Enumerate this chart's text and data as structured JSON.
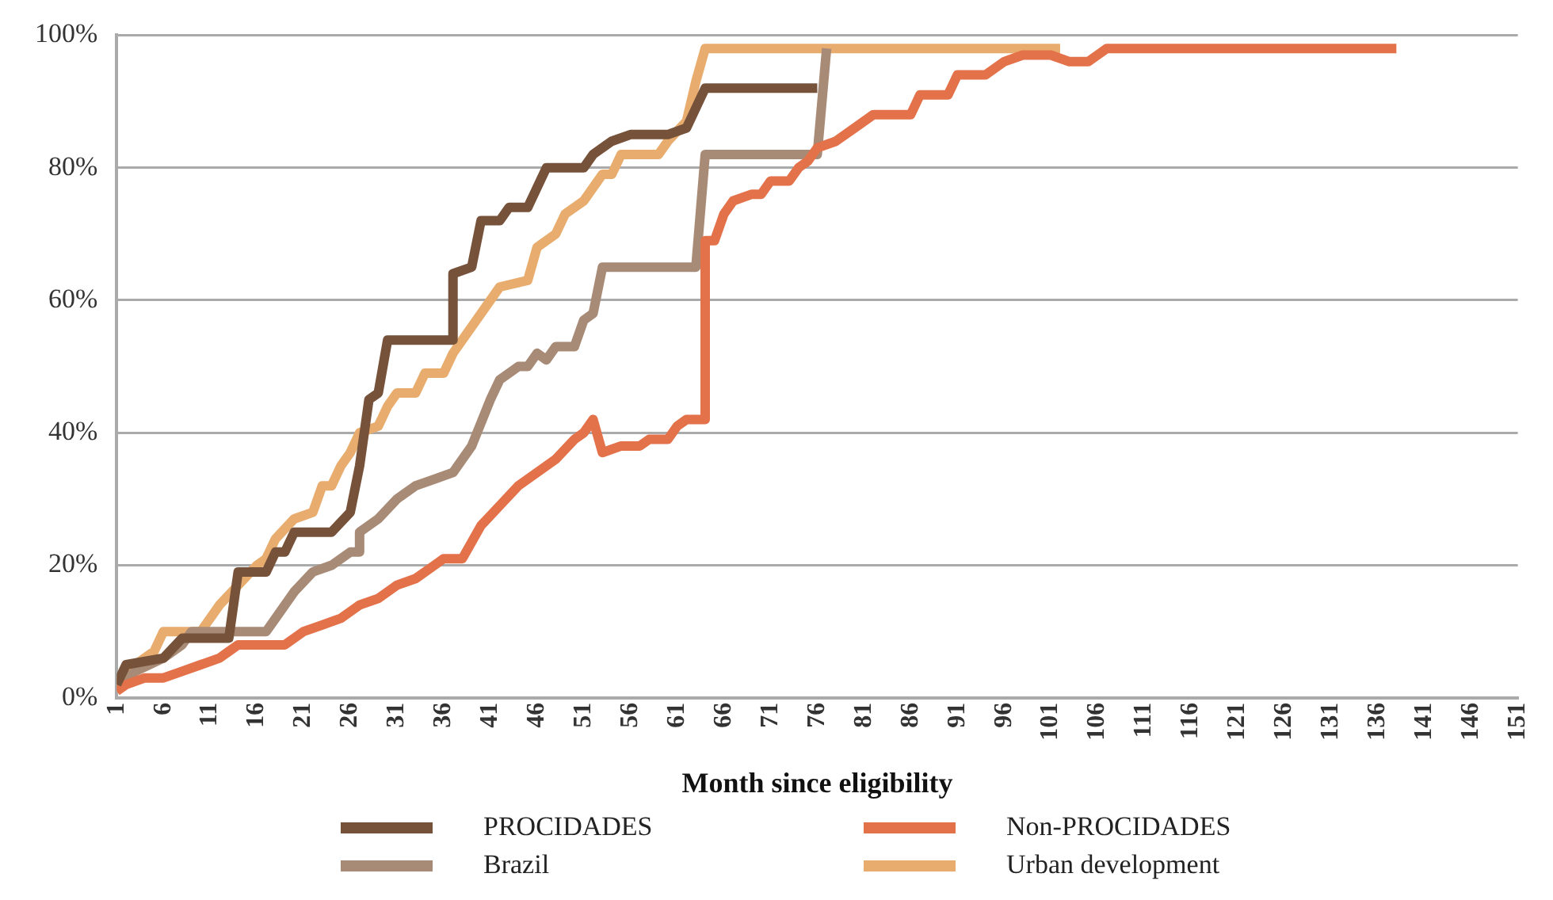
{
  "chart_data": {
    "type": "line",
    "xlabel": "Month since eligibility",
    "xlim": [
      1,
      151
    ],
    "xticks": [
      1,
      6,
      11,
      16,
      21,
      26,
      31,
      36,
      41,
      46,
      51,
      56,
      61,
      66,
      71,
      76,
      81,
      86,
      91,
      96,
      101,
      106,
      111,
      116,
      121,
      126,
      131,
      136,
      141,
      146,
      151
    ],
    "ylim": [
      0,
      100
    ],
    "yticks": [
      {
        "value": 0,
        "label": "0%"
      },
      {
        "value": 20,
        "label": "20%"
      },
      {
        "value": 40,
        "label": "40%"
      },
      {
        "value": 60,
        "label": "60%"
      },
      {
        "value": 80,
        "label": "80%"
      },
      {
        "value": 100,
        "label": "100%"
      }
    ],
    "grid": "y",
    "legend": "bottom",
    "marker": "none",
    "line_style": "solid",
    "series": [
      {
        "name": "PROCIDADES",
        "color": "#76523a",
        "x": [
          1,
          2,
          6,
          8,
          13,
          14,
          17,
          18,
          19,
          20,
          24,
          26,
          27,
          28,
          29,
          30,
          37,
          37,
          39,
          40,
          42,
          43,
          45,
          47,
          51,
          52,
          54,
          56,
          60,
          62,
          64,
          76
        ],
        "values": [
          2,
          5,
          6,
          9,
          9,
          19,
          19,
          22,
          22,
          25,
          25,
          28,
          35,
          45,
          46,
          54,
          54,
          64,
          65,
          72,
          72,
          74,
          74,
          80,
          80,
          82,
          84,
          85,
          85,
          86,
          92,
          92
        ]
      },
      {
        "name": "Non-PROCIDADES",
        "color": "#e3714a",
        "x": [
          1,
          2,
          4,
          6,
          8,
          10,
          12,
          13,
          14,
          19,
          21,
          23,
          25,
          27,
          29,
          31,
          33,
          35,
          36,
          38,
          40,
          42,
          44,
          46,
          48,
          50,
          51,
          52,
          53,
          55,
          57,
          58,
          60,
          61,
          62,
          64,
          64,
          65,
          66,
          67,
          69,
          70,
          71,
          73,
          74,
          75,
          76,
          78,
          80,
          82,
          86,
          87,
          90,
          91,
          94,
          96,
          98,
          101,
          103,
          105,
          107,
          138
        ],
        "values": [
          1,
          2,
          3,
          3,
          4,
          5,
          6,
          7,
          8,
          8,
          10,
          11,
          12,
          14,
          15,
          17,
          18,
          20,
          21,
          21,
          26,
          29,
          32,
          34,
          36,
          39,
          40,
          42,
          37,
          38,
          38,
          39,
          39,
          41,
          42,
          42,
          69,
          69,
          73,
          75,
          76,
          76,
          78,
          78,
          80,
          81,
          83,
          84,
          86,
          88,
          88,
          91,
          91,
          94,
          94,
          96,
          97,
          97,
          96,
          96,
          98,
          98
        ]
      },
      {
        "name": "Brazil",
        "color": "#a88b77",
        "x": [
          1,
          3,
          6,
          8,
          9,
          12,
          17,
          18,
          20,
          22,
          24,
          26,
          27,
          27,
          29,
          31,
          33,
          35,
          37,
          39,
          41,
          42,
          44,
          45,
          46,
          47,
          48,
          50,
          51,
          52,
          53,
          62,
          63,
          64,
          76,
          77
        ],
        "values": [
          2,
          4,
          6,
          8,
          10,
          10,
          10,
          12,
          16,
          19,
          20,
          22,
          22,
          25,
          27,
          30,
          32,
          33,
          34,
          38,
          45,
          48,
          50,
          50,
          52,
          51,
          53,
          53,
          57,
          58,
          65,
          65,
          65,
          82,
          82,
          98
        ]
      },
      {
        "name": "Urban development",
        "color": "#e8ad6e",
        "x": [
          1,
          3,
          5,
          6,
          10,
          12,
          14,
          16,
          17,
          18,
          20,
          22,
          23,
          24,
          25,
          26,
          27,
          29,
          30,
          31,
          33,
          34,
          36,
          37,
          40,
          42,
          45,
          46,
          48,
          49,
          51,
          53,
          54,
          55,
          59,
          60,
          62,
          63,
          64,
          102
        ],
        "values": [
          2,
          5,
          7,
          10,
          10,
          14,
          17,
          20,
          21,
          24,
          27,
          28,
          32,
          32,
          35,
          37,
          40,
          41,
          44,
          46,
          46,
          49,
          49,
          52,
          58,
          62,
          63,
          68,
          70,
          73,
          75,
          79,
          79,
          82,
          82,
          84,
          87,
          93,
          98,
          98
        ]
      }
    ]
  }
}
